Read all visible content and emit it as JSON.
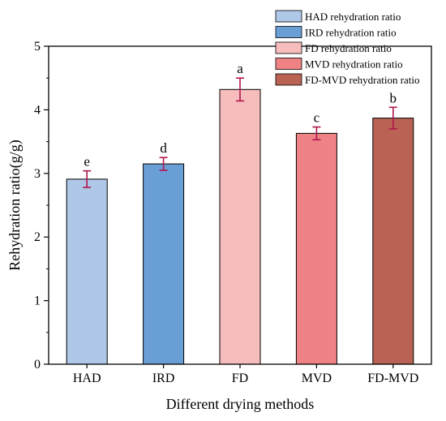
{
  "chart_data": {
    "type": "bar",
    "categories": [
      "HAD",
      "IRD",
      "FD",
      "MVD",
      "FD-MVD"
    ],
    "values": [
      2.91,
      3.15,
      4.32,
      3.63,
      3.87
    ],
    "errors": [
      0.13,
      0.1,
      0.18,
      0.1,
      0.17
    ],
    "significance": [
      "e",
      "d",
      "a",
      "c",
      "b"
    ],
    "colors": [
      "#b0c8e8",
      "#6a9fd5",
      "#f7bdbd",
      "#ee8284",
      "#ba6253"
    ],
    "error_color": "#b0174e",
    "legend": [
      "HAD rehydration ratio",
      "IRD rehydration ratio",
      "FD rehydration ratio",
      "MVD rehydration ratio",
      "FD-MVD rehydration ratio"
    ],
    "legend_position": "top-right",
    "xlabel": "Different drying methods",
    "ylabel": "Rehydration ratio(g/g)",
    "ylim": [
      0,
      5
    ],
    "yticks": [
      "0",
      "1",
      "2",
      "3",
      "4",
      "5"
    ],
    "grid": false
  }
}
